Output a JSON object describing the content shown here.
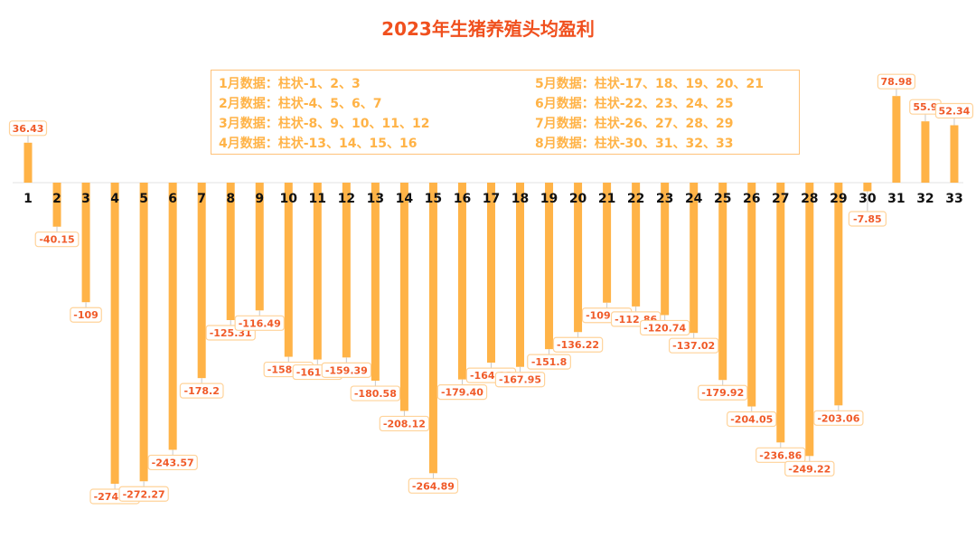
{
  "chart_data": {
    "type": "bar",
    "title": "2023年生猪养殖头均盈利",
    "categories": [
      "1",
      "2",
      "3",
      "4",
      "5",
      "6",
      "7",
      "8",
      "9",
      "10",
      "11",
      "12",
      "13",
      "14",
      "15",
      "16",
      "17",
      "18",
      "19",
      "20",
      "21",
      "22",
      "23",
      "24",
      "25",
      "26",
      "27",
      "28",
      "29",
      "30",
      "31",
      "32",
      "33"
    ],
    "values": [
      36.43,
      -40.15,
      -109,
      -274.52,
      -272.27,
      -243.57,
      -178.2,
      -125.31,
      -116.49,
      -158.75,
      -161.24,
      -159.39,
      -180.58,
      -208.12,
      -264.89,
      -179.4,
      -164.13,
      -167.95,
      -151.8,
      -136.22,
      -109.42,
      -112.86,
      -120.74,
      -137.02,
      -179.92,
      -204.05,
      -236.86,
      -249.22,
      -203.06,
      -7.85,
      78.98,
      55.9,
      52.34
    ],
    "value_labels": [
      "36.43",
      "-40.15",
      "-109",
      "-274.52",
      "-272.27",
      "-243.57",
      "-178.2",
      "-125.31",
      "-116.49",
      "-158.75",
      "-161.24",
      "-159.39",
      "-180.58",
      "-208.12",
      "-264.89",
      "-179.40",
      "-164.13",
      "-167.95",
      "-151.8",
      "-136.22",
      "-109.42",
      "-112.86",
      "-120.74",
      "-137.02",
      "-179.92",
      "-204.05",
      "-236.86",
      "-249.22",
      "-203.06",
      "-7.85",
      "78.98",
      "55.9",
      "52.34"
    ],
    "annotations": [
      "1月数据：柱状-1、2、3",
      "2月数据：柱状-4、5、6、7",
      "3月数据：柱状-8、9、10、11、12",
      "4月数据：柱状-13、14、15、16",
      "5月数据：柱状-17、18、19、20、21",
      "6月数据：柱状-22、23、24、25",
      "7月数据：柱状-26、27、28、29",
      "8月数据：柱状-30、31、32、33"
    ],
    "grid": false,
    "y_axis_visible": false,
    "colors": {
      "bar": "#ffb347",
      "title": "#f0501e",
      "label_text": "#f05a28",
      "label_border": "#ffd39a",
      "annotation_text": "#ffb347"
    }
  }
}
